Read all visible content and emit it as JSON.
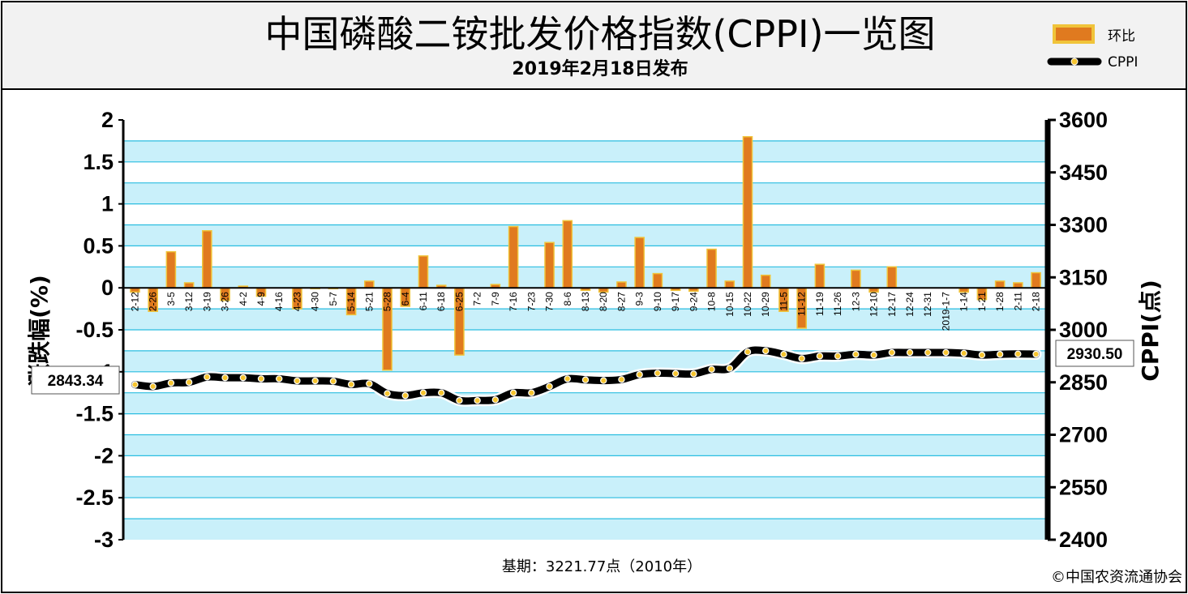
{
  "title": "中国磷酸二铵批发价格指数(CPPI)一览图",
  "subtitle": "2019年2月18日发布",
  "legend": {
    "bar_label": "环比",
    "line_label": "CPPI"
  },
  "footer": {
    "base_period": "基期：3221.77点（2010年）",
    "copyright": "©中国农资流通协会"
  },
  "start_label": "2843.34",
  "end_label": "2930.50",
  "colors": {
    "band": "#c9f0fa",
    "gridline": "#2bbde0",
    "bar_orange": "#e07a1f",
    "bar_gold": "#f0c43a",
    "line": "#000000",
    "dot": "#f5c430",
    "frame": "#000000"
  },
  "chart_data": {
    "type": "bar+line",
    "title": "中国磷酸二铵批发价格指数(CPPI)一览图",
    "categories": [
      "2-12",
      "2-26",
      "3-5",
      "3-12",
      "3-19",
      "3-26",
      "4-2",
      "4-9",
      "4-16",
      "4-23",
      "4-30",
      "5-7",
      "5-14",
      "5-21",
      "5-28",
      "6-4",
      "6-11",
      "6-18",
      "6-25",
      "7-2",
      "7-9",
      "7-16",
      "7-23",
      "7-30",
      "8-6",
      "8-13",
      "8-20",
      "8-27",
      "9-3",
      "9-10",
      "9-17",
      "9-24",
      "10-8",
      "10-15",
      "10-22",
      "10-29",
      "11-5",
      "11-12",
      "11-19",
      "11-26",
      "12-3",
      "12-10",
      "12-17",
      "12-24",
      "12-31",
      "2019-1-7",
      "1-14",
      "1-21",
      "1-28",
      "2-11",
      "2-18"
    ],
    "series": [
      {
        "name": "环比",
        "type": "bar",
        "axis": "left",
        "values": [
          -0.05,
          -0.28,
          0.43,
          0.06,
          0.68,
          -0.15,
          0.02,
          -0.1,
          0,
          -0.25,
          -0.01,
          -0.01,
          -0.32,
          0.08,
          -0.98,
          -0.22,
          0.38,
          0.03,
          -0.8,
          0,
          0.04,
          0.73,
          0,
          0.54,
          0.8,
          -0.03,
          -0.05,
          0.07,
          0.6,
          0.17,
          -0.03,
          -0.04,
          0.46,
          0.08,
          1.8,
          0.15,
          -0.28,
          -0.48,
          0.28,
          0,
          0.21,
          -0.05,
          0.25,
          0,
          0,
          0,
          -0.05,
          -0.14,
          0.08,
          0.06,
          0.18
        ]
      },
      {
        "name": "CPPI",
        "type": "line",
        "axis": "right",
        "values": [
          2843.34,
          2838,
          2848,
          2850,
          2865,
          2863,
          2863,
          2860,
          2860,
          2854,
          2854,
          2853,
          2844,
          2846,
          2818,
          2812,
          2820,
          2820,
          2798,
          2798,
          2800,
          2820,
          2820,
          2838,
          2860,
          2857,
          2855,
          2858,
          2872,
          2876,
          2875,
          2874,
          2887,
          2890,
          2937,
          2940,
          2930,
          2918,
          2925,
          2925,
          2930,
          2928,
          2935,
          2935,
          2935,
          2935,
          2933,
          2928,
          2930,
          2931,
          2930.5
        ]
      }
    ],
    "y_left": {
      "title": "涨跌幅(%)",
      "ticks": [
        "2",
        "1.5",
        "1",
        "0.5",
        "0",
        "-0.5",
        "-1",
        "-1.5",
        "-2",
        "-2.5",
        "-3"
      ],
      "range": [
        -3,
        2
      ]
    },
    "y_right": {
      "title": "CPPI(点)",
      "ticks": [
        "3600",
        "3450",
        "3300",
        "3150",
        "3000",
        "2850",
        "2700",
        "2550",
        "2400"
      ],
      "range": [
        2400,
        3600
      ]
    }
  }
}
